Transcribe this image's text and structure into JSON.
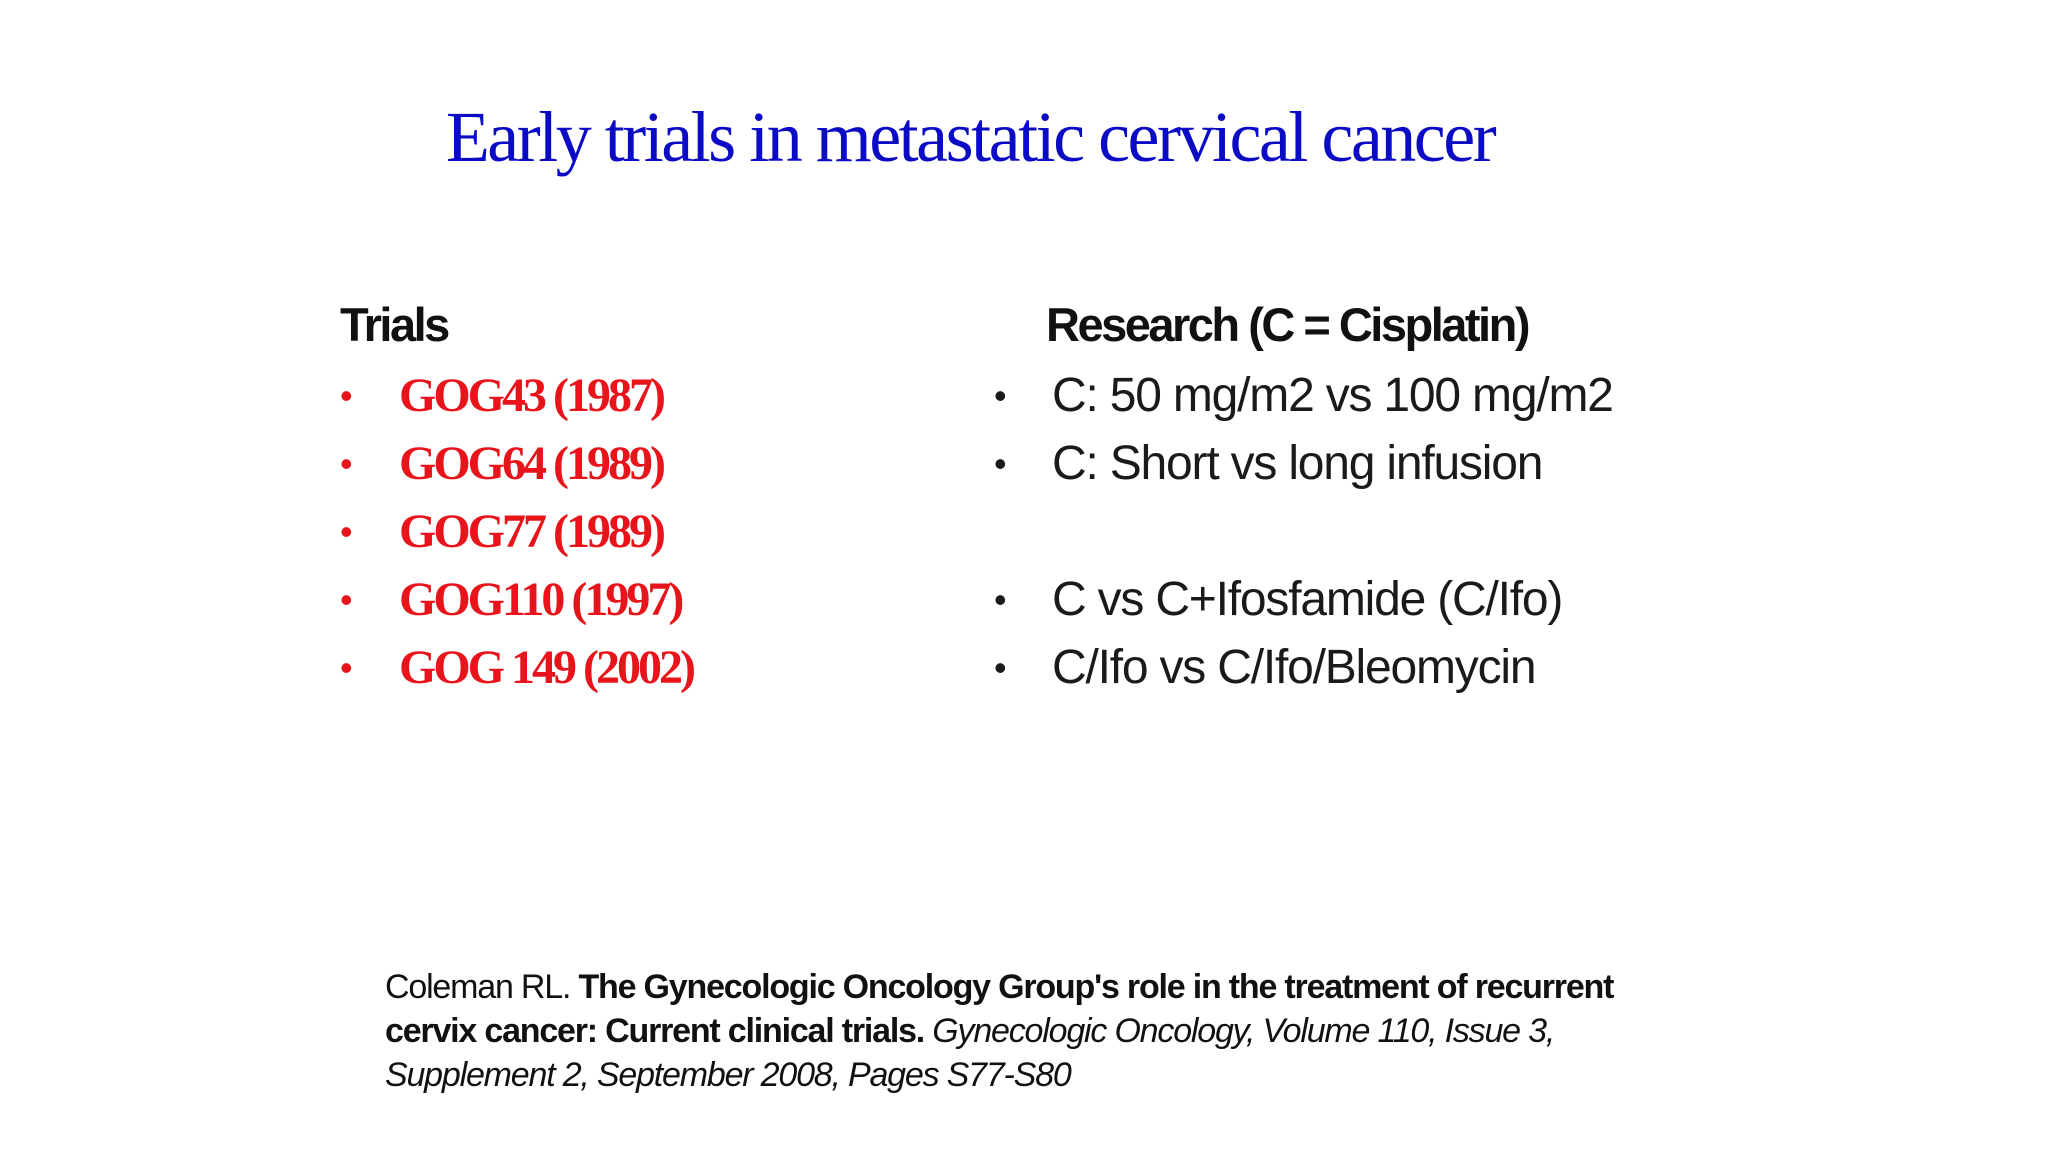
{
  "slide": {
    "title": "Early trials in metastatic cervical cancer",
    "trials": {
      "header": "Trials",
      "items": [
        {
          "bullet": "•",
          "text": "GOG43 (1987)"
        },
        {
          "bullet": "•",
          "text": "GOG64 (1989)"
        },
        {
          "bullet": "•",
          "text": "GOG77 (1989)"
        },
        {
          "bullet": "•",
          "text": "GOG110 (1997)"
        },
        {
          "bullet": "•",
          "text": "GOG 149 (2002)"
        }
      ]
    },
    "research": {
      "header": "Research (C = Cisplatin)",
      "items": [
        {
          "bullet": "•",
          "text": "C: 50 mg/m2 vs 100 mg/m2"
        },
        {
          "bullet": "•",
          "text": "C: Short vs long infusion"
        },
        {
          "bullet": "•",
          "text": "C vs C+Ifosfamide (C/Ifo)"
        },
        {
          "bullet": "•",
          "text": "C/Ifo vs C/Ifo/Bleomycin"
        }
      ]
    },
    "citation": {
      "author": "Coleman RL. ",
      "article": "The Gynecologic Oncology Group's role in the treatment of recurrent cervix cancer: Current clinical trials.",
      "journal": " Gynecologic Oncology, Volume 110, Issue 3, Supplement 2, September 2008, Pages S77-S80"
    },
    "colors": {
      "title": "#0b0bc6",
      "trials_text": "#e8141b",
      "body_text": "#1a1a1a",
      "background": "#ffffff"
    }
  }
}
